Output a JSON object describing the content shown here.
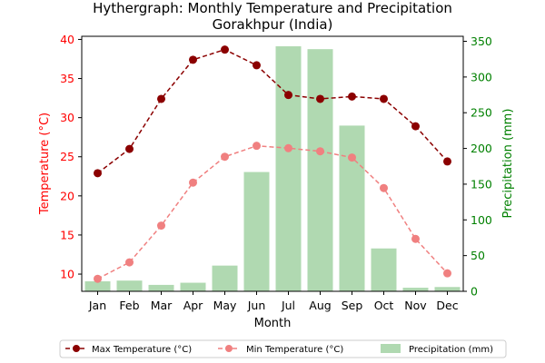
{
  "chart_data": {
    "type": "bar",
    "title": "Hythergraph: Monthly Temperature and Precipitation",
    "subtitle": "Gorakhpur (India)",
    "xlabel": "Month",
    "ylabel_left": "Temperature (°C)",
    "ylabel_right": "Precipitation (mm)",
    "categories": [
      "Jan",
      "Feb",
      "Mar",
      "Apr",
      "May",
      "Jun",
      "Jul",
      "Aug",
      "Sep",
      "Oct",
      "Nov",
      "Dec"
    ],
    "ylim_left": [
      7.8,
      40.4
    ],
    "yticks_left": [
      "10",
      "15",
      "20",
      "25",
      "30",
      "35",
      "40"
    ],
    "ylim_right": [
      0,
      357
    ],
    "yticks_right": [
      "0",
      "50",
      "100",
      "150",
      "200",
      "250",
      "300",
      "350"
    ],
    "grid": false,
    "legend_position": "bottom",
    "series": [
      {
        "name": "Max Temperature (°C)",
        "kind": "line",
        "axis": "left",
        "color": "#8b0000",
        "linestyle": "dashed",
        "values": [
          22.9,
          26.0,
          32.4,
          37.4,
          38.7,
          36.7,
          32.9,
          32.4,
          32.7,
          32.4,
          28.9,
          24.4
        ]
      },
      {
        "name": "Min Temperature (°C)",
        "kind": "line",
        "axis": "left",
        "color": "#f08080",
        "linestyle": "dashed",
        "values": [
          9.4,
          11.5,
          16.2,
          21.7,
          25.0,
          26.4,
          26.1,
          25.7,
          24.9,
          21.0,
          14.5,
          10.1
        ]
      },
      {
        "name": "Precipitation (mm)",
        "kind": "bar",
        "axis": "right",
        "color": "#b0d9b1",
        "values": [
          14,
          15,
          9,
          12,
          36,
          167,
          343,
          339,
          232,
          60,
          5,
          6
        ]
      }
    ]
  },
  "colors": {
    "left_axis": "#ff0000",
    "right_axis": "#008000"
  }
}
